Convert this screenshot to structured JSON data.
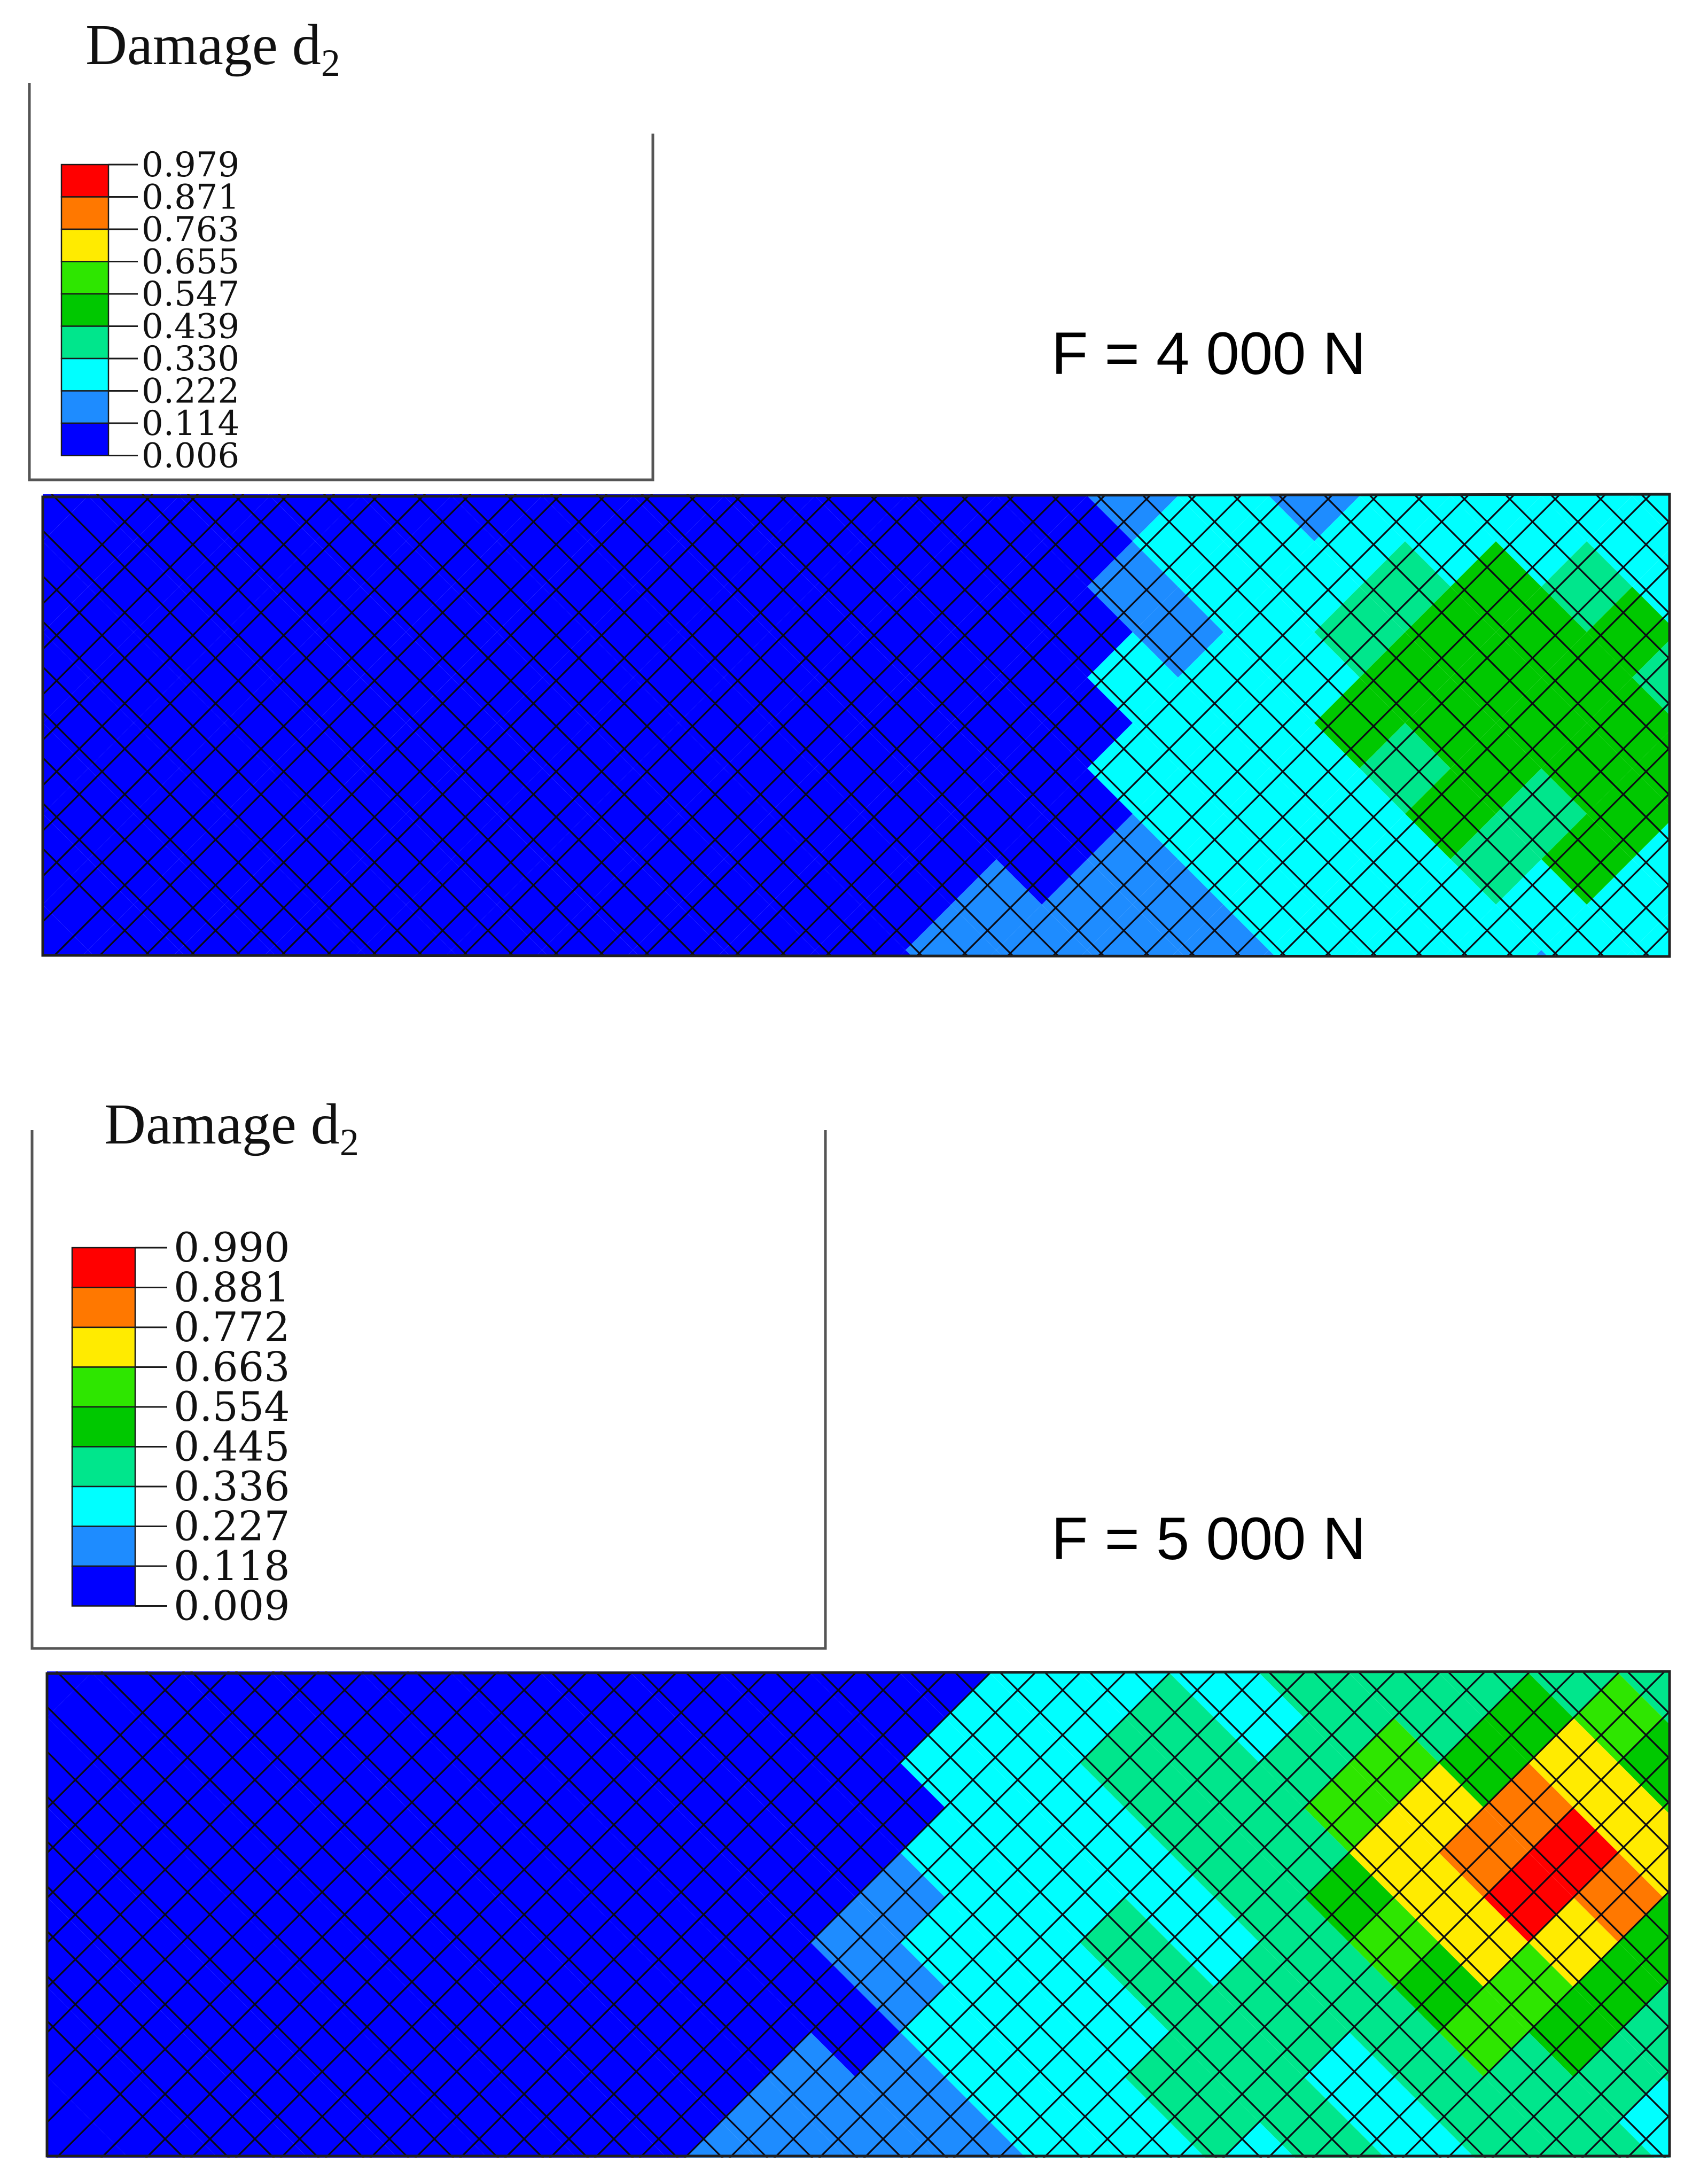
{
  "panels": [
    {
      "title_text": "Damage d",
      "title_subscript": "2",
      "load_label": "F = 4 000 N",
      "legend_values": [
        "0.979",
        "0.871",
        "0.763",
        "0.655",
        "0.547",
        "0.439",
        "0.330",
        "0.222",
        "0.114",
        "0.006"
      ],
      "legend_colors": [
        "#ff0000",
        "#ff7800",
        "#ffeb00",
        "#2ee600",
        "#00c800",
        "#00e68c",
        "#00ffff",
        "#1e8cff",
        "#0000ff"
      ],
      "damage_front": "moderate"
    },
    {
      "title_text": "Damage d",
      "title_subscript": "2",
      "load_label": "F = 5 000 N",
      "legend_values": [
        "0.990",
        "0.881",
        "0.772",
        "0.663",
        "0.554",
        "0.445",
        "0.336",
        "0.227",
        "0.118",
        "0.009"
      ],
      "legend_colors": [
        "#ff0000",
        "#ff7800",
        "#ffeb00",
        "#2ee600",
        "#00c800",
        "#00e68c",
        "#00ffff",
        "#1e8cff",
        "#0000ff"
      ],
      "damage_front": "advanced"
    }
  ]
}
